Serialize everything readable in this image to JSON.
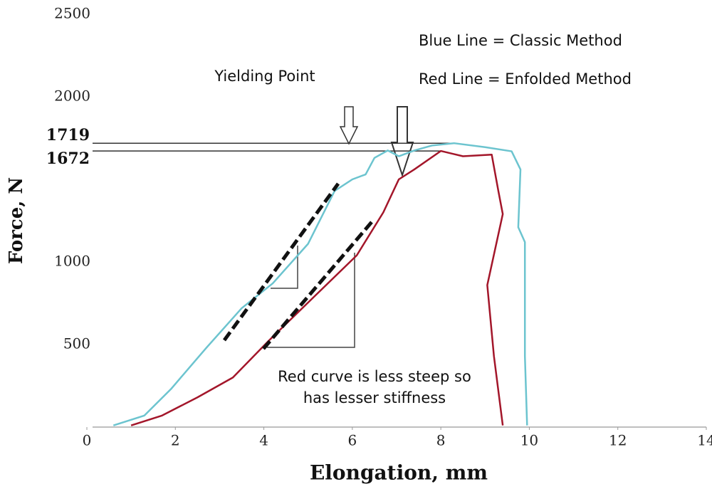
{
  "chart_data": {
    "type": "line",
    "xlabel": "Elongation, mm",
    "ylabel": "Force, N",
    "xlim": [
      0,
      14
    ],
    "xticks": [
      0,
      2,
      4,
      6,
      8,
      10,
      12,
      14
    ],
    "ylim": [
      0,
      2500
    ],
    "yticks": [
      500,
      1000,
      2000,
      2500
    ],
    "hlines": [
      1719,
      1672
    ],
    "annotations": [
      "Yielding Point",
      "Blue Line = Classic Method",
      "Red Line = Enfolded Method",
      "Red curve is less steep so",
      "has lesser stiffness"
    ],
    "series": [
      {
        "color": "#6cc4cf",
        "x": [
          0.6,
          1.3,
          1.9,
          2.7,
          3.5,
          4.2,
          5.0,
          5.6,
          6.0,
          6.3,
          6.5,
          6.8,
          7.05,
          7.4,
          7.8,
          8.3,
          9.0,
          9.6,
          9.8,
          9.75,
          9.9,
          9.9,
          9.95
        ],
        "values": [
          10,
          70,
          230,
          480,
          720,
          870,
          1110,
          1430,
          1500,
          1530,
          1630,
          1675,
          1640,
          1675,
          1705,
          1719,
          1695,
          1670,
          1560,
          1210,
          1120,
          430,
          10
        ]
      },
      {
        "color": "#a3162a",
        "x": [
          1.0,
          1.7,
          2.5,
          3.3,
          4.1,
          5.1,
          6.1,
          6.7,
          7.05,
          7.4,
          8.0,
          8.5,
          9.15,
          9.3,
          9.4,
          9.05,
          9.2,
          9.4
        ],
        "values": [
          10,
          70,
          180,
          300,
          520,
          780,
          1040,
          1300,
          1500,
          1560,
          1672,
          1640,
          1650,
          1430,
          1290,
          860,
          430,
          10
        ]
      }
    ]
  }
}
